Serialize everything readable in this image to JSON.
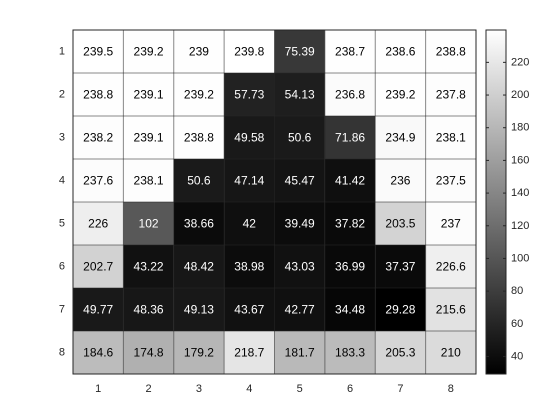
{
  "chart_data": {
    "type": "heatmap",
    "colormap": "gray",
    "x_tick_labels": [
      "1",
      "2",
      "3",
      "4",
      "5",
      "6",
      "7",
      "8"
    ],
    "y_tick_labels": [
      "1",
      "2",
      "3",
      "4",
      "5",
      "6",
      "7",
      "8"
    ],
    "cell_labels": [
      [
        "239.5",
        "239.2",
        "239",
        "239.8",
        "75.39",
        "238.7",
        "238.6",
        "238.8"
      ],
      [
        "238.8",
        "239.1",
        "239.2",
        "57.73",
        "54.13",
        "236.8",
        "239.2",
        "237.8"
      ],
      [
        "238.2",
        "239.1",
        "238.8",
        "49.58",
        "50.6",
        "71.86",
        "234.9",
        "238.1"
      ],
      [
        "237.6",
        "238.1",
        "50.6",
        "47.14",
        "45.47",
        "41.42",
        "236",
        "237.5"
      ],
      [
        "226",
        "102",
        "38.66",
        "42",
        "39.49",
        "37.82",
        "203.5",
        "237"
      ],
      [
        "202.7",
        "43.22",
        "48.42",
        "38.98",
        "43.03",
        "36.99",
        "37.37",
        "226.6"
      ],
      [
        "49.77",
        "48.36",
        "49.13",
        "43.67",
        "42.77",
        "34.48",
        "29.28",
        "215.6"
      ],
      [
        "184.6",
        "174.8",
        "179.2",
        "218.7",
        "181.7",
        "183.3",
        "205.3",
        "210"
      ]
    ],
    "values": [
      [
        239.5,
        239.2,
        239,
        239.8,
        75.39,
        238.7,
        238.6,
        238.8
      ],
      [
        238.8,
        239.1,
        239.2,
        57.73,
        54.13,
        236.8,
        239.2,
        237.8
      ],
      [
        238.2,
        239.1,
        238.8,
        49.58,
        50.6,
        71.86,
        234.9,
        238.1
      ],
      [
        237.6,
        238.1,
        50.6,
        47.14,
        45.47,
        41.42,
        236,
        237.5
      ],
      [
        226,
        102,
        38.66,
        42,
        39.49,
        37.82,
        203.5,
        237
      ],
      [
        202.7,
        43.22,
        48.42,
        38.98,
        43.03,
        36.99,
        37.37,
        226.6
      ],
      [
        49.77,
        48.36,
        49.13,
        43.67,
        42.77,
        34.48,
        29.28,
        215.6
      ],
      [
        184.6,
        174.8,
        179.2,
        218.7,
        181.7,
        183.3,
        205.3,
        210
      ]
    ],
    "color_range": [
      29.28,
      239.8
    ],
    "colorbar": {
      "ticks": [
        40,
        60,
        80,
        100,
        120,
        140,
        160,
        180,
        200,
        220
      ],
      "tick_labels": [
        "40",
        "60",
        "80",
        "100",
        "120",
        "140",
        "160",
        "180",
        "200",
        "220"
      ],
      "placement": "right"
    },
    "grid": true,
    "title": "",
    "xlabel": "",
    "ylabel": ""
  }
}
